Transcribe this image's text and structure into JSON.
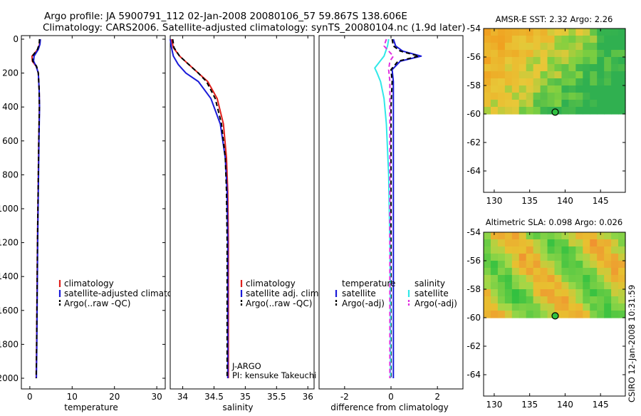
{
  "header": {
    "line1": "Argo profile: JA 5900791_112 02-Jan-2008 20080106_57 59.867S 138.606E",
    "line2": "Climatology: CARS2006. Satellite-adjusted climatology: synTS_20080104.nc (1.9d later)"
  },
  "stamp": "CSIRO 12-Jan-2008 10:31:59",
  "colors": {
    "red": "#e0201c",
    "blue": "#1a1ad8",
    "black": "#000000",
    "cyan": "#30e8e8",
    "magenta": "#e030e0"
  },
  "panels": {
    "temperature": {
      "xlabel": "temperature",
      "xticks": [
        "0",
        "10",
        "20",
        "30"
      ],
      "legend": [
        "climatology",
        "satellite-adjusted climatology",
        "Argo(..raw -QC)"
      ]
    },
    "salinity": {
      "xlabel": "salinity",
      "xticks": [
        "34",
        "34.5",
        "35",
        "35.5",
        "36"
      ],
      "legend": [
        "climatology",
        "satellite adj. clim.",
        "Argo(..raw -QC)"
      ],
      "note1": "J-ARGO",
      "note2": "PI: kensuke Takeuchi"
    },
    "difference": {
      "xlabel": "difference from climatology",
      "xticks": [
        "-2",
        "0",
        "2"
      ],
      "legend_t_title": "temperature",
      "legend_s_title": "salinity",
      "legend_t": [
        "satellite",
        "Argo(-adj)"
      ],
      "legend_s": [
        "satellite",
        "Argo(-adj)"
      ]
    }
  },
  "depth_ticks": [
    "0",
    "200",
    "400",
    "600",
    "800",
    "1000",
    "1200",
    "1400",
    "1600",
    "1800",
    "2000"
  ],
  "maps": {
    "sst_title": "AMSR-E SST: 2.32  Argo: 2.26",
    "sla_title": "Altimetric SLA: 0.098  Argo: 0.026",
    "lat_ticks": [
      "-54",
      "-56",
      "-58",
      "-60",
      "-62",
      "-64"
    ],
    "lon_ticks": [
      "130",
      "135",
      "140",
      "145"
    ]
  },
  "chart_data": [
    {
      "type": "line",
      "title": "",
      "xlabel": "temperature",
      "ylabel": "",
      "xlim": [
        -2,
        32
      ],
      "ylim": [
        2050,
        0
      ],
      "series": [
        {
          "name": "climatology",
          "color": "#e0201c",
          "x": [
            2.4,
            2.3,
            1.9,
            0.5,
            0.6,
            1.5,
            2.0,
            2.2,
            2.25,
            2.1,
            2.0,
            1.9,
            1.8,
            1.7,
            1.6,
            1.5
          ],
          "y": [
            0,
            30,
            60,
            100,
            130,
            160,
            200,
            300,
            400,
            600,
            800,
            1000,
            1200,
            1500,
            1800,
            2000
          ]
        },
        {
          "name": "satellite-adjusted climatology",
          "color": "#1a1ad8",
          "x": [
            2.5,
            2.4,
            2.0,
            1.0,
            0.9,
            1.5,
            2.0,
            2.2,
            2.3,
            2.15,
            2.05,
            1.95,
            1.85,
            1.75,
            1.65,
            1.55
          ],
          "y": [
            0,
            30,
            60,
            100,
            130,
            160,
            200,
            300,
            400,
            600,
            800,
            1000,
            1200,
            1500,
            1800,
            2000
          ]
        },
        {
          "name": "Argo(..raw -QC)",
          "color": "#000000",
          "dash": true,
          "x": [
            2.3,
            2.2,
            1.8,
            0.6,
            0.7,
            1.6,
            2.0,
            2.2,
            2.25,
            2.1,
            2.0,
            1.9,
            1.8,
            1.7,
            1.6,
            1.5
          ],
          "y": [
            0,
            30,
            60,
            100,
            130,
            160,
            200,
            300,
            400,
            600,
            800,
            1000,
            1200,
            1500,
            1800,
            2000
          ]
        }
      ]
    },
    {
      "type": "line",
      "title": "",
      "xlabel": "salinity",
      "ylabel": "",
      "xlim": [
        33.8,
        36.1
      ],
      "ylim": [
        2050,
        0
      ],
      "series": [
        {
          "name": "climatology",
          "color": "#e0201c",
          "x": [
            33.82,
            33.85,
            33.95,
            34.1,
            34.25,
            34.4,
            34.55,
            34.65,
            34.7,
            34.72,
            34.73,
            34.73,
            34.73,
            34.73
          ],
          "y": [
            0,
            50,
            100,
            150,
            200,
            250,
            350,
            500,
            700,
            900,
            1200,
            1500,
            1800,
            2000
          ]
        },
        {
          "name": "satellite adj. clim.",
          "color": "#1a1ad8",
          "x": [
            33.8,
            33.82,
            33.85,
            33.93,
            34.05,
            34.25,
            34.45,
            34.6,
            34.68,
            34.71,
            34.72,
            34.72,
            34.72,
            34.72
          ],
          "y": [
            0,
            50,
            100,
            150,
            200,
            250,
            350,
            500,
            700,
            900,
            1200,
            1500,
            1800,
            2000
          ]
        },
        {
          "name": "Argo(..raw -QC)",
          "color": "#000000",
          "dash": true,
          "x": [
            33.84,
            33.86,
            33.95,
            34.1,
            34.25,
            34.38,
            34.52,
            34.62,
            34.68,
            34.7,
            34.71,
            34.71,
            34.71,
            34.71
          ],
          "y": [
            0,
            50,
            100,
            150,
            200,
            250,
            350,
            500,
            700,
            900,
            1200,
            1500,
            1800,
            2000
          ]
        }
      ]
    },
    {
      "type": "line",
      "title": "",
      "xlabel": "difference from climatology",
      "ylabel": "",
      "xlim": [
        -3.1,
        3.1
      ],
      "ylim": [
        2050,
        0
      ],
      "series": [
        {
          "name": "temperature satellite",
          "color": "#1a1ad8",
          "x": [
            0.1,
            0.2,
            0.5,
            1.3,
            0.4,
            0.05,
            0.1,
            0.1,
            0.1,
            0.1,
            0.1,
            0.1
          ],
          "y": [
            0,
            40,
            70,
            100,
            130,
            180,
            250,
            400,
            800,
            1200,
            1600,
            2000
          ]
        },
        {
          "name": "temperature Argo(-adj)",
          "color": "#000000",
          "dash": true,
          "x": [
            0.05,
            0.1,
            0.4,
            1.2,
            0.3,
            0.0,
            0.05,
            0.0,
            0.0,
            0.0,
            0.0,
            0.0
          ],
          "y": [
            0,
            40,
            70,
            100,
            130,
            180,
            250,
            400,
            800,
            1200,
            1600,
            2000
          ]
        },
        {
          "name": "salinity satellite",
          "color": "#30e8e8",
          "x": [
            -0.1,
            -0.15,
            -0.3,
            -0.7,
            -0.6,
            -0.45,
            -0.3,
            -0.2,
            -0.1,
            -0.05,
            -0.02,
            -0.02
          ],
          "y": [
            0,
            40,
            100,
            170,
            200,
            250,
            350,
            500,
            800,
            1200,
            1600,
            2000
          ]
        },
        {
          "name": "salinity Argo(-adj)",
          "color": "#e030e0",
          "dash": true,
          "x": [
            -0.2,
            -0.3,
            -0.1,
            0.1,
            -0.05,
            -0.1,
            -0.05,
            -0.05,
            -0.05,
            -0.05,
            -0.05,
            -0.05
          ],
          "y": [
            0,
            40,
            70,
            100,
            130,
            180,
            250,
            400,
            800,
            1200,
            1600,
            2000
          ]
        }
      ]
    },
    {
      "type": "heatmap",
      "title": "AMSR-E SST: 2.32  Argo: 2.26",
      "xlabel": "",
      "ylabel": "",
      "xlim": [
        128.5,
        148.5
      ],
      "ylim": [
        -65.5,
        -54
      ],
      "data_rows": 12,
      "data_cols": 20,
      "argo_point": {
        "lon": 138.6,
        "lat": -59.87
      }
    },
    {
      "type": "heatmap",
      "title": "Altimetric SLA: 0.098  Argo: 0.026",
      "xlabel": "",
      "ylabel": "",
      "xlim": [
        128.5,
        148.5
      ],
      "ylim": [
        -65.5,
        -54
      ],
      "data_rows": 12,
      "data_cols": 20,
      "argo_point": {
        "lon": 138.6,
        "lat": -59.87
      }
    }
  ]
}
